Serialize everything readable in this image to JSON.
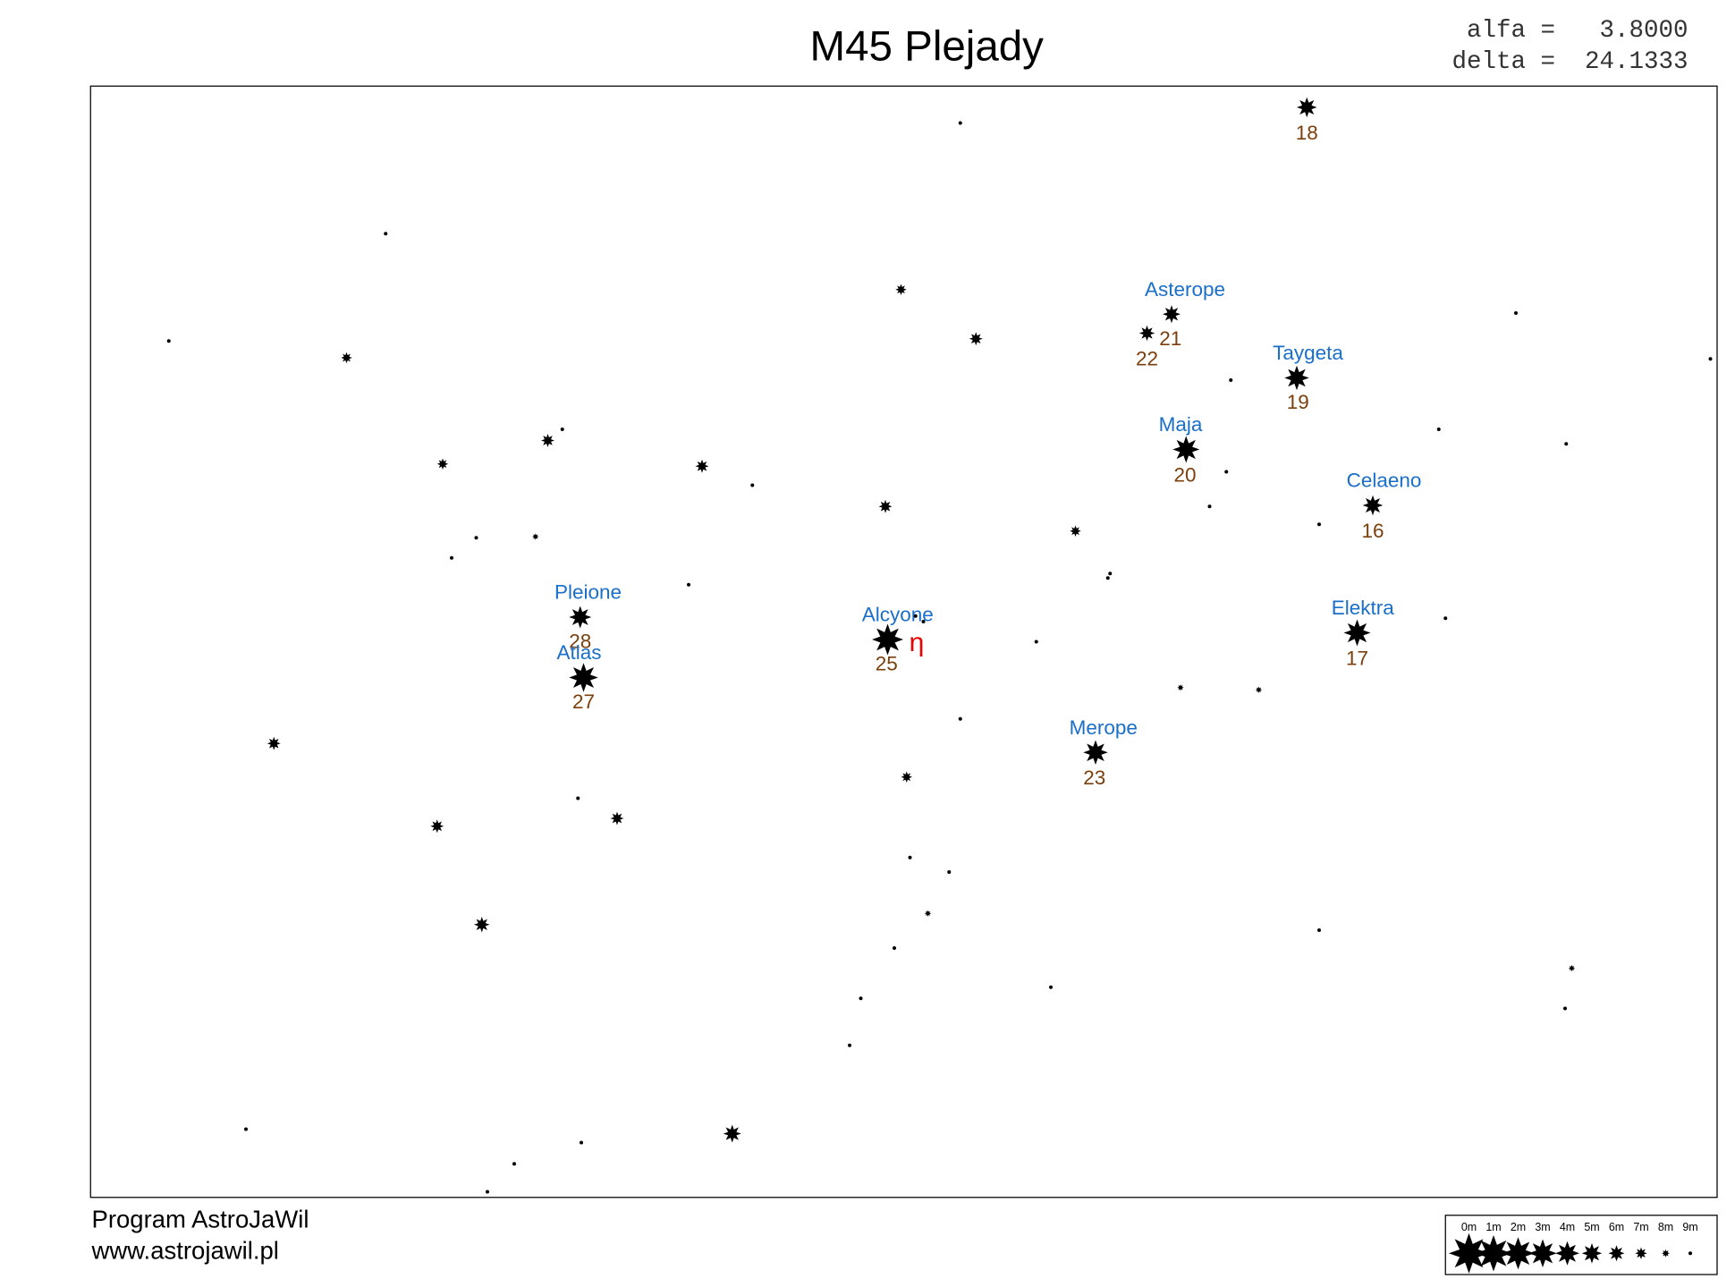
{
  "header": {
    "title": "M45  Plejady",
    "alfa": "alfa =   3.8000",
    "delta": "delta =  24.1333"
  },
  "stars": [
    {
      "name": "Asterope",
      "number": 21
    },
    {
      "number": 22
    },
    {
      "name": "Taygeta",
      "number": 19
    },
    {
      "name": "Maja",
      "number": 20
    },
    {
      "name": "Celaeno",
      "number": 16
    },
    {
      "name": "Pleione",
      "number": 28
    },
    {
      "name": "Atlas",
      "number": 27
    },
    {
      "name": "Alcyone",
      "number": 25,
      "greek": "η"
    },
    {
      "name": "Elektra",
      "number": 17
    },
    {
      "name": "Merope",
      "number": 23
    },
    {
      "number": 18
    }
  ],
  "footer": {
    "program": "Program AstroJaWil",
    "url": "www.astrojawil.pl"
  },
  "legend": [
    "0m",
    "1m",
    "2m",
    "3m",
    "4m",
    "5m",
    "6m",
    "7m",
    "8m",
    "9m"
  ]
}
